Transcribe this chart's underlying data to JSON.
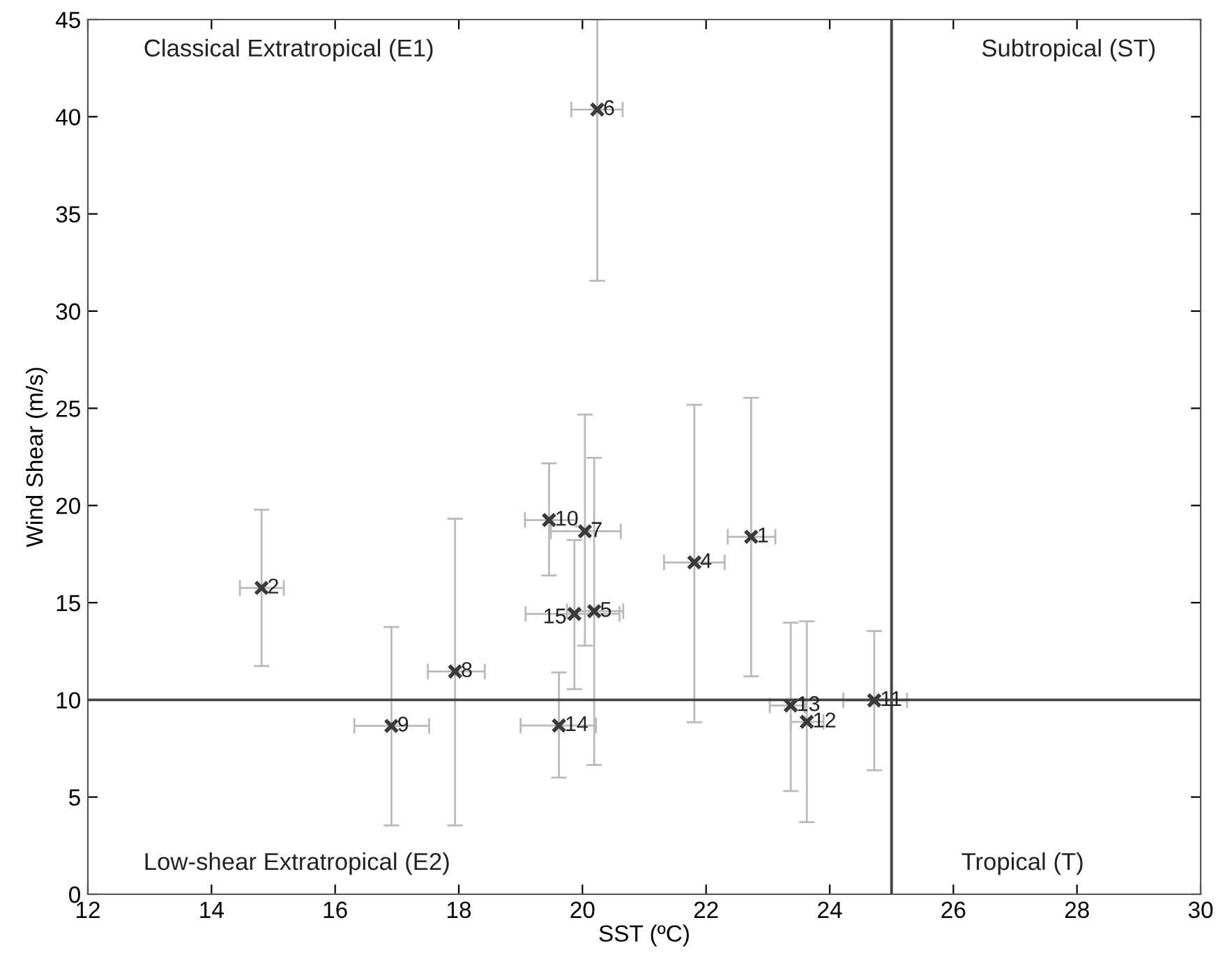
{
  "chart_data": {
    "type": "scatter",
    "xlabel": "SST (ºC)",
    "ylabel": "Wind Shear (m/s)",
    "xlim": [
      12,
      30
    ],
    "xticks": [
      12,
      14,
      16,
      18,
      20,
      22,
      24,
      26,
      28,
      30
    ],
    "ylim": [
      0,
      45
    ],
    "yticks": [
      0,
      5,
      10,
      15,
      20,
      25,
      30,
      35,
      40,
      45
    ],
    "grid": false,
    "marker": "cross",
    "x": [
      22.73,
      14.81,
      21.81,
      20.19,
      20.24,
      20.04,
      17.94,
      16.91,
      19.46,
      24.72,
      23.63,
      23.37,
      19.62,
      19.87
    ],
    "series": [
      {
        "color": "#3a3a3a",
        "values": [
          18.39,
          15.76,
          17.07,
          14.56,
          40.37,
          18.67,
          11.46,
          8.66,
          19.25,
          9.97,
          8.87,
          9.71,
          8.68,
          14.42
        ],
        "errors": [
          [
            11.21,
            25.54
          ],
          [
            11.74,
            19.78
          ],
          [
            8.85,
            25.18
          ],
          [
            6.65,
            22.45
          ],
          [
            31.56,
            45
          ],
          [
            12.79,
            24.68
          ],
          [
            3.54,
            19.32
          ],
          [
            3.54,
            13.75
          ],
          [
            16.4,
            22.17
          ],
          [
            6.38,
            13.54
          ],
          [
            3.71,
            14.04
          ],
          [
            5.31,
            13.97
          ],
          [
            6.0,
            11.41
          ],
          [
            10.55,
            18.22
          ]
        ],
        "xerrors": [
          [
            22.35,
            23.12
          ],
          [
            14.46,
            15.17
          ],
          [
            21.32,
            22.3
          ],
          [
            19.75,
            20.66
          ],
          [
            19.82,
            20.65
          ],
          [
            19.49,
            20.62
          ],
          [
            17.5,
            18.42
          ],
          [
            16.31,
            17.52
          ],
          [
            19.07,
            19.9
          ],
          [
            24.22,
            25.25
          ],
          [
            23.37,
            23.9
          ],
          [
            23.03,
            23.6
          ],
          [
            19.0,
            20.22
          ],
          [
            19.08,
            20.6
          ]
        ]
      }
    ],
    "ref_lines": [
      {
        "axis": "x",
        "value": 25,
        "color": "#444444"
      },
      {
        "axis": "y",
        "value": 10,
        "color": "#444444"
      }
    ],
    "annotations": [
      {
        "text": "1",
        "x": 22.73,
        "y": 18.39
      },
      {
        "text": "2",
        "x": 14.81,
        "y": 15.76
      },
      {
        "text": "4",
        "x": 21.81,
        "y": 17.07
      },
      {
        "text": "5",
        "x": 20.19,
        "y": 14.56
      },
      {
        "text": "6",
        "x": 20.24,
        "y": 40.37
      },
      {
        "text": "7",
        "x": 20.04,
        "y": 18.67
      },
      {
        "text": "8",
        "x": 17.94,
        "y": 11.46
      },
      {
        "text": "9",
        "x": 16.91,
        "y": 8.66
      },
      {
        "text": "10",
        "x": 19.46,
        "y": 19.25
      },
      {
        "text": "11",
        "x": 24.72,
        "y": 9.97
      },
      {
        "text": "12",
        "x": 23.63,
        "y": 8.87
      },
      {
        "text": "13",
        "x": 23.37,
        "y": 9.71
      },
      {
        "text": "14",
        "x": 19.62,
        "y": 8.68
      },
      {
        "text": "15",
        "x": 19.87,
        "y": 14.42
      },
      "Classical Extratropical (E1)",
      "Subtropical (ST)",
      "Low-shear Extratropical (E2)",
      "Tropical (T)"
    ]
  }
}
